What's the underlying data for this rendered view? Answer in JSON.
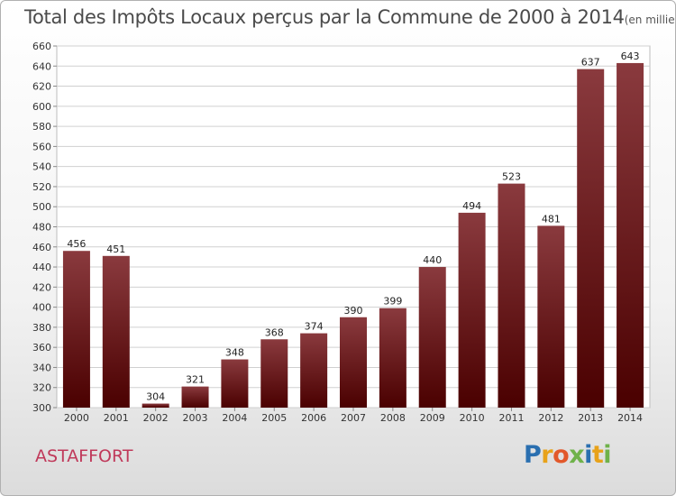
{
  "title": "Total des Impôts Locaux perçus par la Commune de 2000 à 2014",
  "title_unit": "(en milliers d'€)",
  "commune": "ASTAFFORT",
  "logo": {
    "text": "Proxiti",
    "letters": [
      {
        "ch": "P",
        "color": "#2a6fb0"
      },
      {
        "ch": "r",
        "color": "#e8a21a"
      },
      {
        "ch": "o",
        "color": "#e2582a"
      },
      {
        "ch": "x",
        "color": "#6fb24a"
      },
      {
        "ch": "i",
        "color": "#2a6fb0"
      },
      {
        "ch": "t",
        "color": "#e8a21a"
      },
      {
        "ch": "i",
        "color": "#6fb24a"
      }
    ]
  },
  "colors": {
    "bar_top": "#8a3a3e",
    "bar_bottom": "#4a0000",
    "grid": "#d0d0d0"
  },
  "chart_data": {
    "type": "bar",
    "categories": [
      "2000",
      "2001",
      "2002",
      "2003",
      "2004",
      "2005",
      "2006",
      "2007",
      "2008",
      "2009",
      "2010",
      "2011",
      "2012",
      "2013",
      "2014"
    ],
    "values": [
      456,
      451,
      304,
      321,
      348,
      368,
      374,
      390,
      399,
      440,
      494,
      523,
      481,
      637,
      643
    ],
    "ylim": [
      300,
      660
    ],
    "yticks": [
      300,
      320,
      340,
      360,
      380,
      400,
      420,
      440,
      460,
      480,
      500,
      520,
      540,
      560,
      580,
      600,
      620,
      640,
      660
    ],
    "grid": true,
    "data_labels": true
  }
}
